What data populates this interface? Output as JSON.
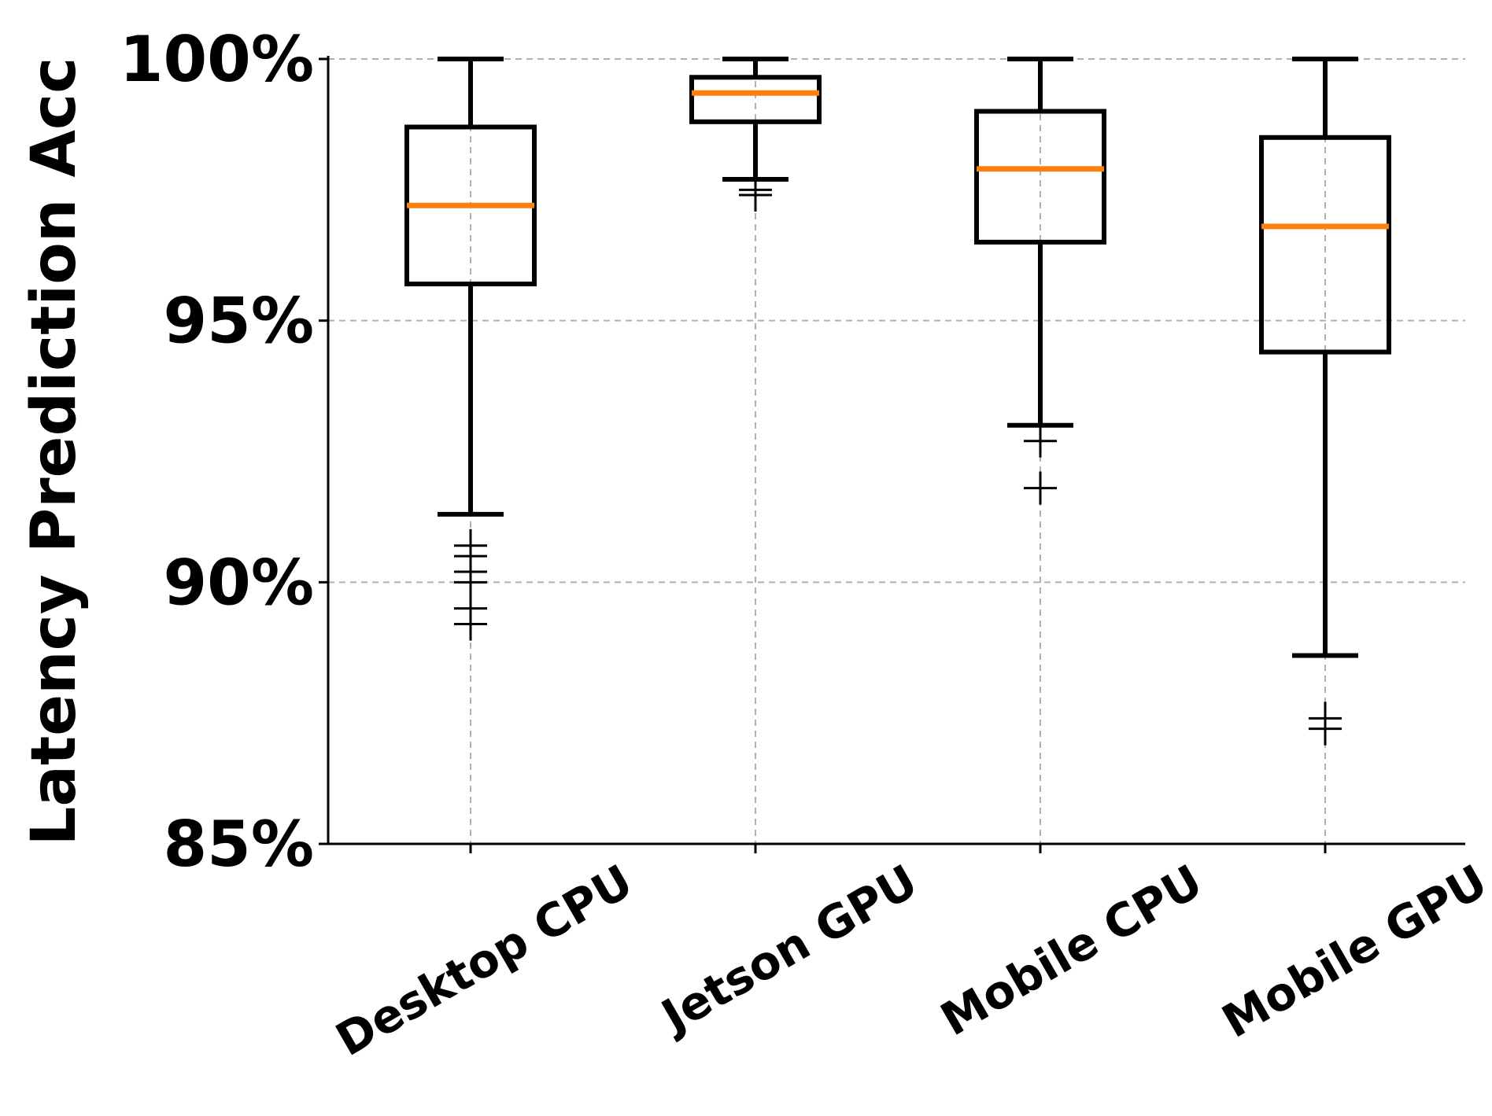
{
  "chart_data": {
    "type": "box",
    "title": "",
    "xlabel": "",
    "ylabel": "Latency Prediction Acc",
    "ylim": [
      85,
      100
    ],
    "yticks": [
      85,
      90,
      95,
      100
    ],
    "ytick_labels": [
      "85%",
      "90%",
      "95%",
      "100%"
    ],
    "grid": true,
    "categories": [
      "Desktop CPU",
      "Jetson GPU",
      "Mobile CPU",
      "Mobile GPU"
    ],
    "boxes": [
      {
        "category": "Desktop CPU",
        "whisker_low": 91.3,
        "q1": 95.7,
        "median": 97.2,
        "q3": 98.7,
        "whisker_high": 100.0,
        "outliers": [
          90.7,
          90.5,
          90.2,
          90.0,
          89.5,
          89.2
        ]
      },
      {
        "category": "Jetson GPU",
        "whisker_low": 97.7,
        "q1": 98.8,
        "median": 99.35,
        "q3": 99.65,
        "whisker_high": 100.0,
        "outliers": [
          97.5,
          97.4
        ]
      },
      {
        "category": "Mobile CPU",
        "whisker_low": 93.0,
        "q1": 96.5,
        "median": 97.9,
        "q3": 99.0,
        "whisker_high": 100.0,
        "outliers": [
          92.7,
          91.8
        ]
      },
      {
        "category": "Mobile GPU",
        "whisker_low": 88.6,
        "q1": 94.4,
        "median": 96.8,
        "q3": 98.5,
        "whisker_high": 100.0,
        "outliers": [
          87.4,
          87.2
        ]
      }
    ],
    "colors": {
      "box": "#000000",
      "median": "#ff7f0e",
      "grid": "#b0b0b0"
    }
  }
}
